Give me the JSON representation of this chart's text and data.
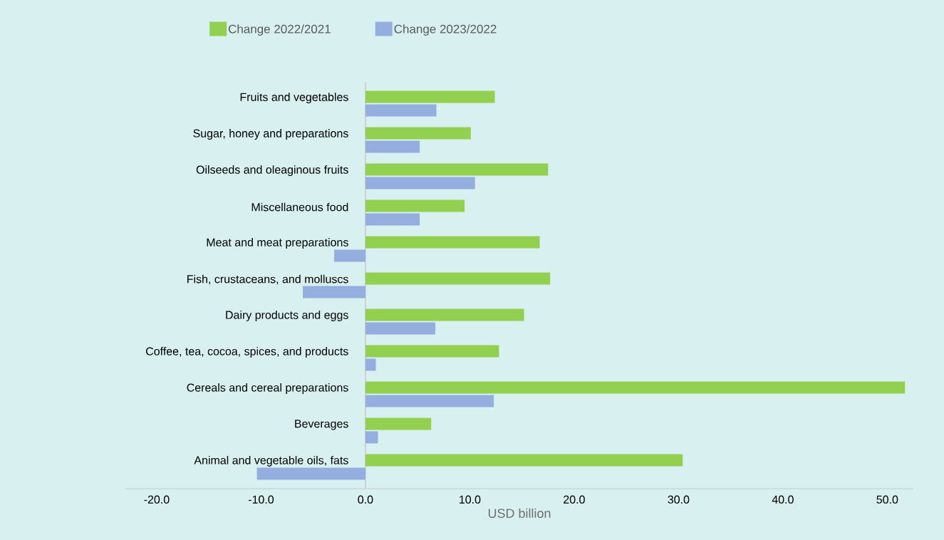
{
  "chart_data": {
    "type": "bar",
    "orientation": "horizontal",
    "xlabel": "USD billion",
    "categories": [
      "Fruits and vegetables",
      "Sugar, honey and preparations",
      "Oilseeds and oleaginous fruits",
      "Miscellaneous food",
      "Meat and meat preparations",
      "Fish, crustaceans, and molluscs",
      "Dairy products and eggs",
      "Coffee, tea, cocoa, spices, and products",
      "Cereals and cereal preparations",
      "Beverages",
      "Animal and vegetable oils, fats"
    ],
    "series": [
      {
        "name": "Change 2022/2021",
        "color": "#92d050",
        "values": [
          12.4,
          10.1,
          17.5,
          9.5,
          16.7,
          17.7,
          15.2,
          12.8,
          51.7,
          6.3,
          30.4
        ]
      },
      {
        "name": "Change 2023/2022",
        "color": "#95aee0",
        "values": [
          6.8,
          5.2,
          10.5,
          5.2,
          -3.0,
          -6.0,
          6.7,
          1.0,
          12.3,
          1.2,
          -10.4
        ]
      }
    ],
    "xlim": [
      -23,
      52.5
    ],
    "xticks": [
      {
        "value": -20,
        "label": "-20.0"
      },
      {
        "value": -10,
        "label": "-10.0"
      },
      {
        "value": 0,
        "label": "0.0"
      },
      {
        "value": 10,
        "label": "10.0"
      },
      {
        "value": 20,
        "label": "20.0"
      },
      {
        "value": 30,
        "label": "30.0"
      },
      {
        "value": 40,
        "label": "40.0"
      },
      {
        "value": 50,
        "label": "50.0"
      }
    ],
    "legend": "top"
  }
}
